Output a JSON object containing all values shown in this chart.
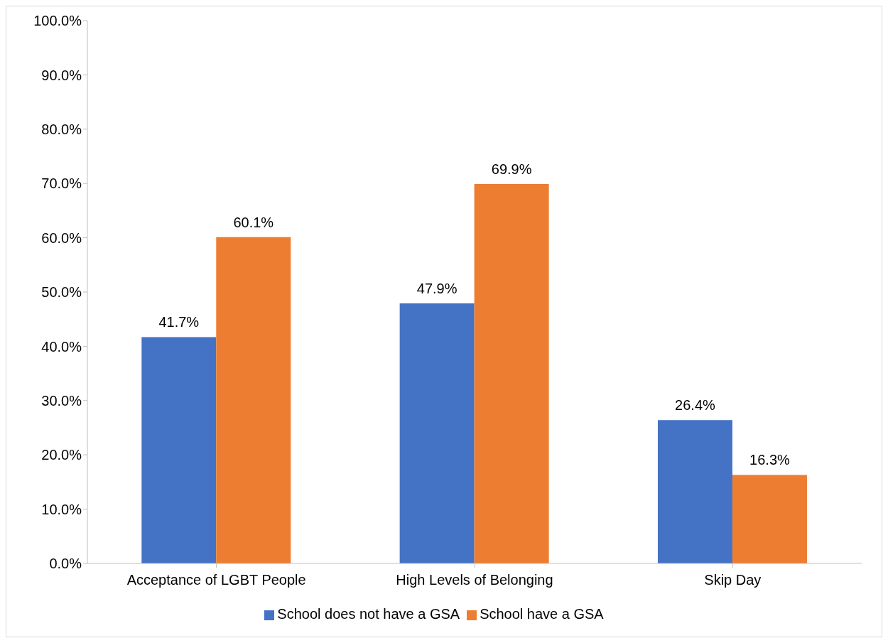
{
  "chart_data": {
    "type": "bar",
    "categories": [
      "Acceptance of LGBT People",
      "High Levels of Belonging",
      "Skip Day"
    ],
    "series": [
      {
        "name": "School does not have a GSA",
        "color": "#4472c4",
        "values": [
          41.7,
          47.9,
          26.4
        ],
        "value_labels": [
          "41.7%",
          "47.9%",
          "26.4%"
        ]
      },
      {
        "name": "School have a GSA",
        "color": "#ed7d31",
        "values": [
          60.1,
          69.9,
          16.3
        ],
        "value_labels": [
          "60.1%",
          "69.9%",
          "16.3%"
        ]
      }
    ],
    "ylim": [
      0,
      100
    ],
    "yticks": [
      {
        "value": 0,
        "label": "0.0%"
      },
      {
        "value": 10,
        "label": "10.0%"
      },
      {
        "value": 20,
        "label": "20.0%"
      },
      {
        "value": 30,
        "label": "30.0%"
      },
      {
        "value": 40,
        "label": "40.0%"
      },
      {
        "value": 50,
        "label": "50.0%"
      },
      {
        "value": 60,
        "label": "60.0%"
      },
      {
        "value": 70,
        "label": "70.0%"
      },
      {
        "value": 80,
        "label": "80.0%"
      },
      {
        "value": 90,
        "label": "90.0%"
      },
      {
        "value": 100,
        "label": "100.0%"
      }
    ],
    "grid": false,
    "legend": "bottom"
  }
}
